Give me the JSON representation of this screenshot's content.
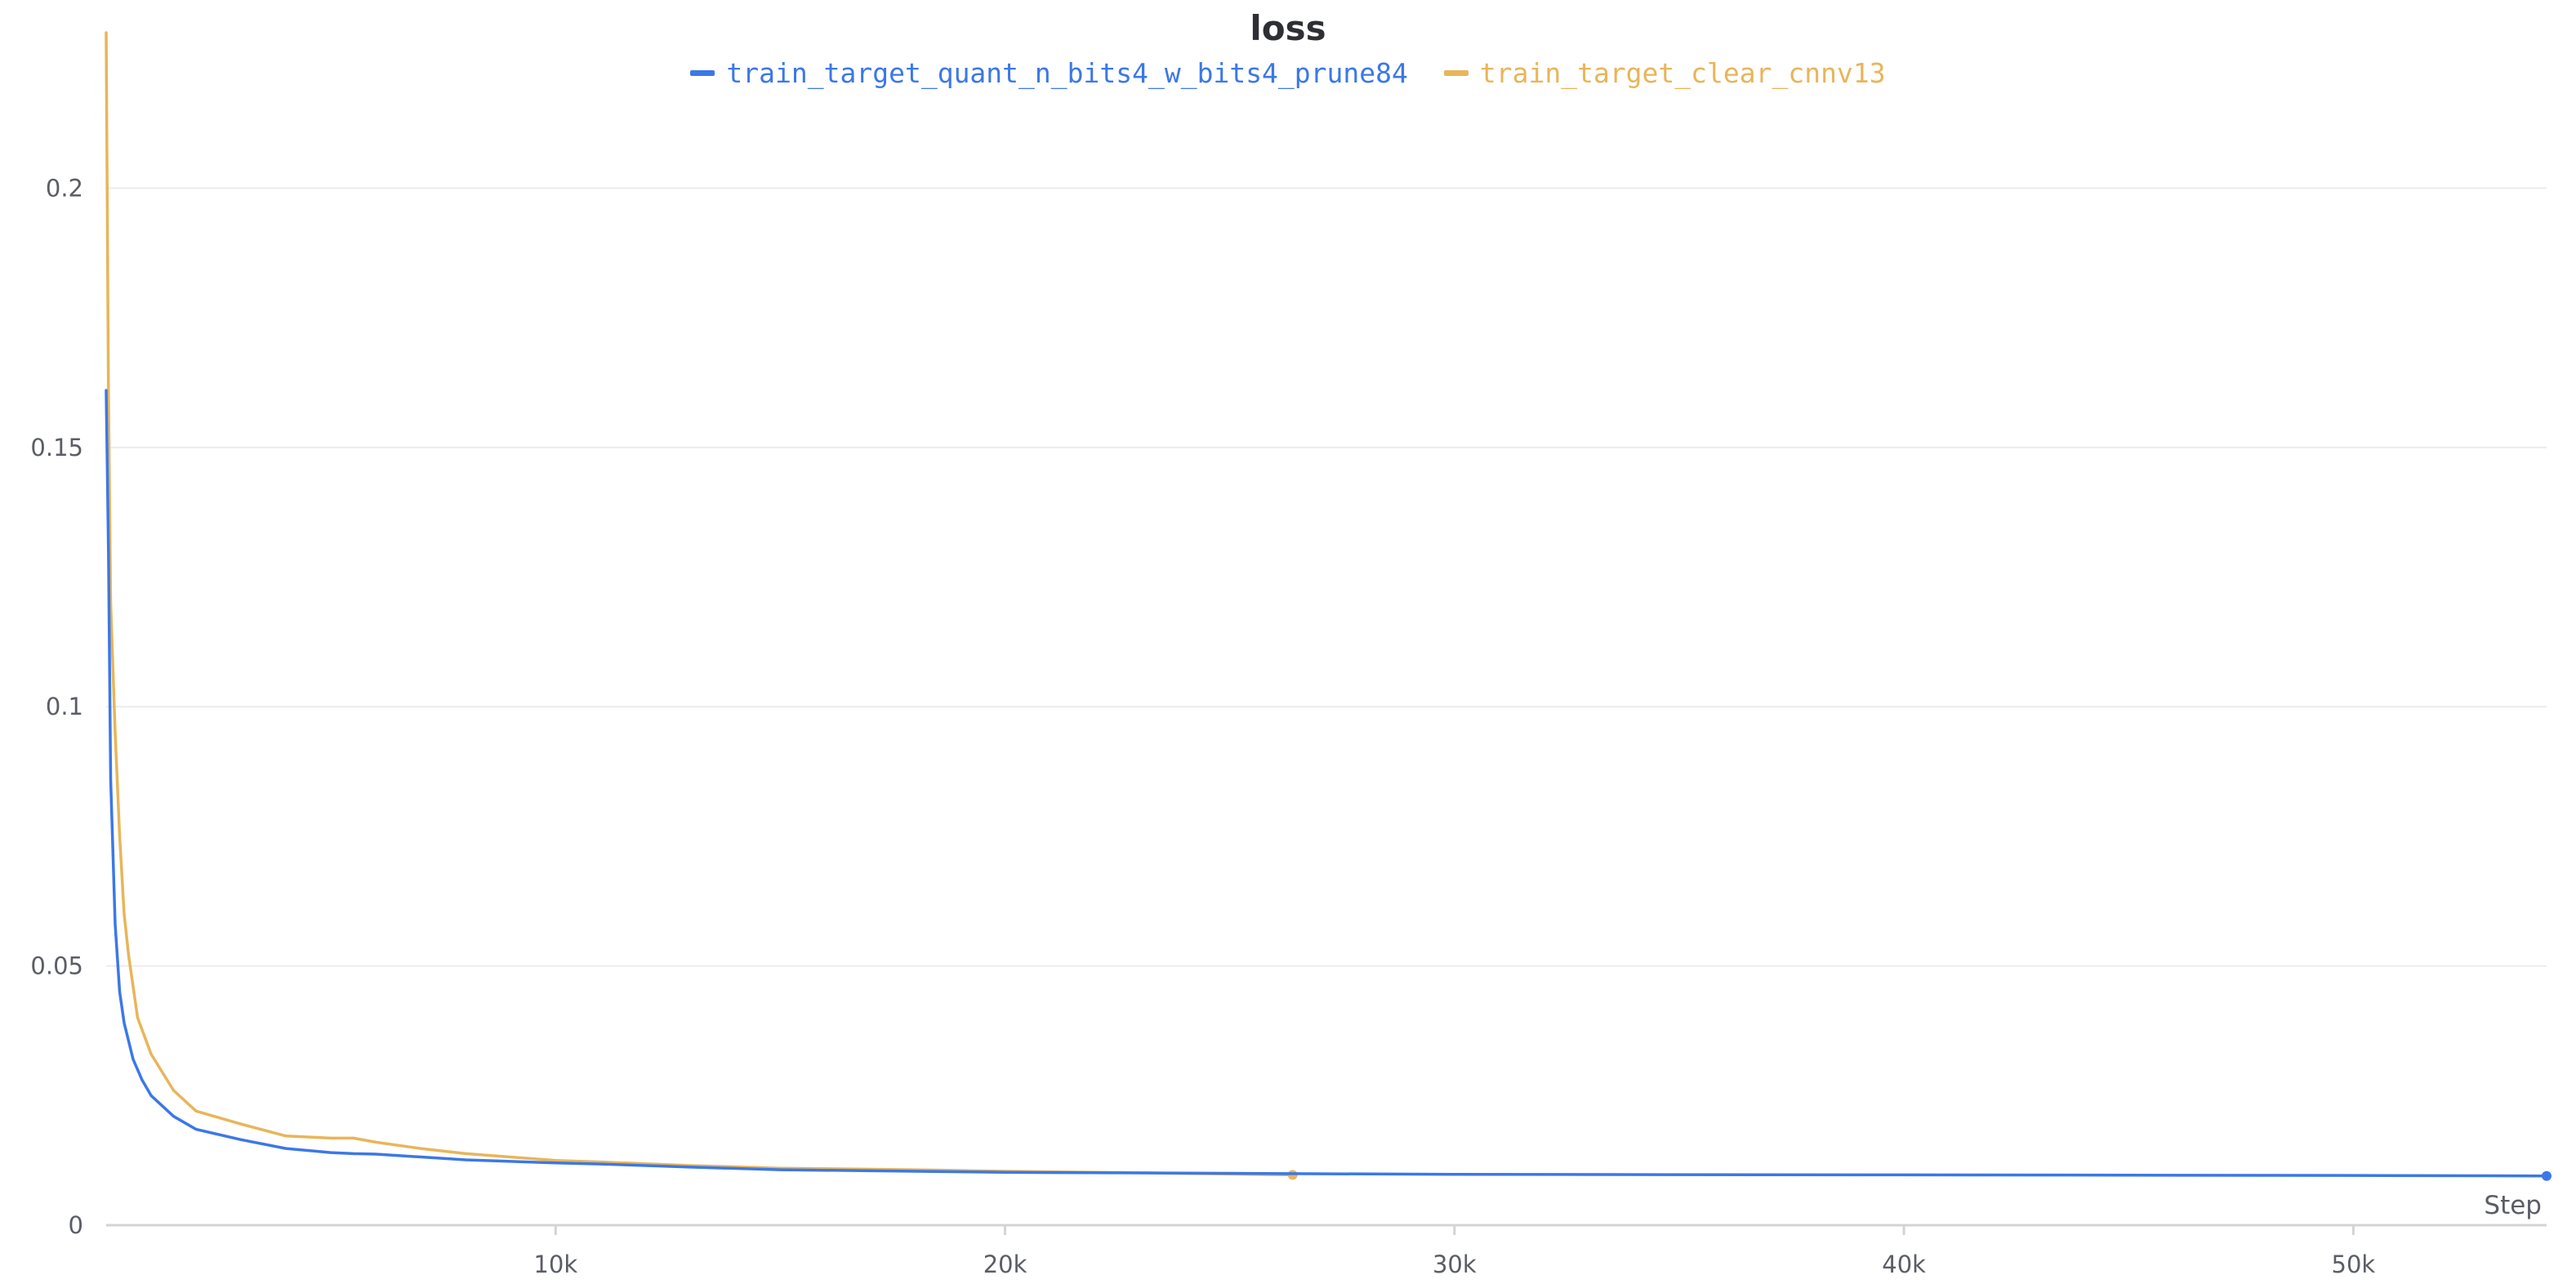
{
  "chart_data": {
    "type": "line",
    "title": "loss",
    "xlabel": "Step",
    "ylabel": "",
    "xlim": [
      0,
      54300
    ],
    "ylim": [
      0,
      0.23
    ],
    "x_ticks": [
      10000,
      20000,
      30000,
      40000,
      50000
    ],
    "x_tick_labels": [
      "10k",
      "20k",
      "30k",
      "40k",
      "50k"
    ],
    "y_ticks": [
      0,
      0.05,
      0.1,
      0.15,
      0.2
    ],
    "y_tick_labels": [
      "0",
      "0.05",
      "0.1",
      "0.15",
      "0.2"
    ],
    "grid": true,
    "legend_position": "top-center",
    "series": [
      {
        "name": "train_target_quant_n_bits4_w_bits4_prune84",
        "color": "#3b78e7",
        "x": [
          0,
          50,
          100,
          200,
          300,
          400,
          600,
          800,
          1000,
          1500,
          2000,
          3000,
          4000,
          5000,
          5500,
          6000,
          8000,
          10000,
          11000,
          13000,
          15000,
          20000,
          25000,
          30000,
          40000,
          50000,
          54300
        ],
        "y": [
          0.161,
          0.13,
          0.086,
          0.058,
          0.045,
          0.039,
          0.032,
          0.028,
          0.025,
          0.021,
          0.0185,
          0.0165,
          0.0148,
          0.014,
          0.0138,
          0.0137,
          0.0126,
          0.012,
          0.0118,
          0.0112,
          0.0107,
          0.0102,
          0.01,
          0.0098,
          0.0097,
          0.0096,
          0.0095
        ]
      },
      {
        "name": "train_target_clear_cnnv13",
        "color": "#e8b55a",
        "x": [
          0,
          50,
          100,
          200,
          300,
          400,
          500,
          700,
          1000,
          1500,
          2000,
          3000,
          4000,
          5000,
          5500,
          6000,
          7000,
          8000,
          10000,
          11000,
          13000,
          15000,
          18000,
          20000,
          23000,
          26400
        ],
        "y": [
          0.23,
          0.16,
          0.12,
          0.095,
          0.075,
          0.06,
          0.052,
          0.04,
          0.033,
          0.026,
          0.022,
          0.0195,
          0.0172,
          0.0168,
          0.0168,
          0.016,
          0.0148,
          0.0138,
          0.0125,
          0.0122,
          0.0115,
          0.011,
          0.0107,
          0.0104,
          0.0101,
          0.0097
        ]
      }
    ]
  }
}
